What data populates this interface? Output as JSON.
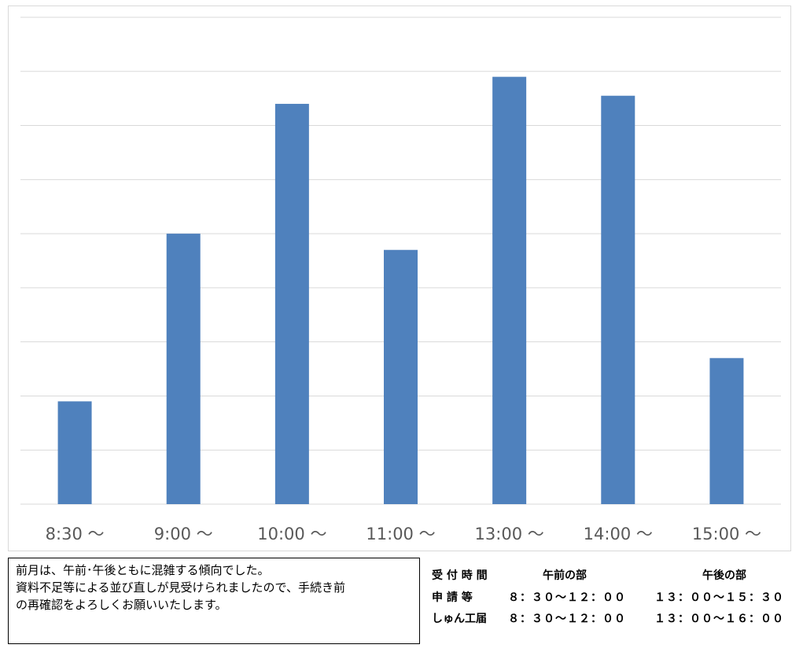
{
  "chart_data": {
    "type": "bar",
    "categories": [
      "8:30 ～",
      "9:00 ～",
      "10:00 ～",
      "11:00 ～",
      "13:00 ～",
      "14:00 ～",
      "15:00 ～"
    ],
    "values": [
      19,
      50,
      74,
      47,
      79,
      75.5,
      27
    ],
    "ylim": [
      0,
      90
    ],
    "grid": true,
    "legend": "none",
    "colors": {
      "bar": "#4f81bd",
      "grid": "#d9d9d9",
      "axis": "#d9d9d9",
      "tick_label": "#595959"
    }
  },
  "note": {
    "lines": [
      "前月は、午前･午後ともに混雑する傾向でした。",
      "資料不足等による並び直しが見受けられましたので、手続き前",
      "の再確認をよろしくお願いいたします。"
    ]
  },
  "hours": {
    "header": {
      "label": "受 付 時 間",
      "am": "午前の部",
      "pm": "午後の部"
    },
    "rows": [
      {
        "label": "申 請 等",
        "am": "８：３０～１２：００",
        "pm": "１３：００～１５：３０"
      },
      {
        "label": "しゅん工届",
        "am": "８：３０～１２：００",
        "pm": "１３：００～１６：００"
      }
    ]
  }
}
